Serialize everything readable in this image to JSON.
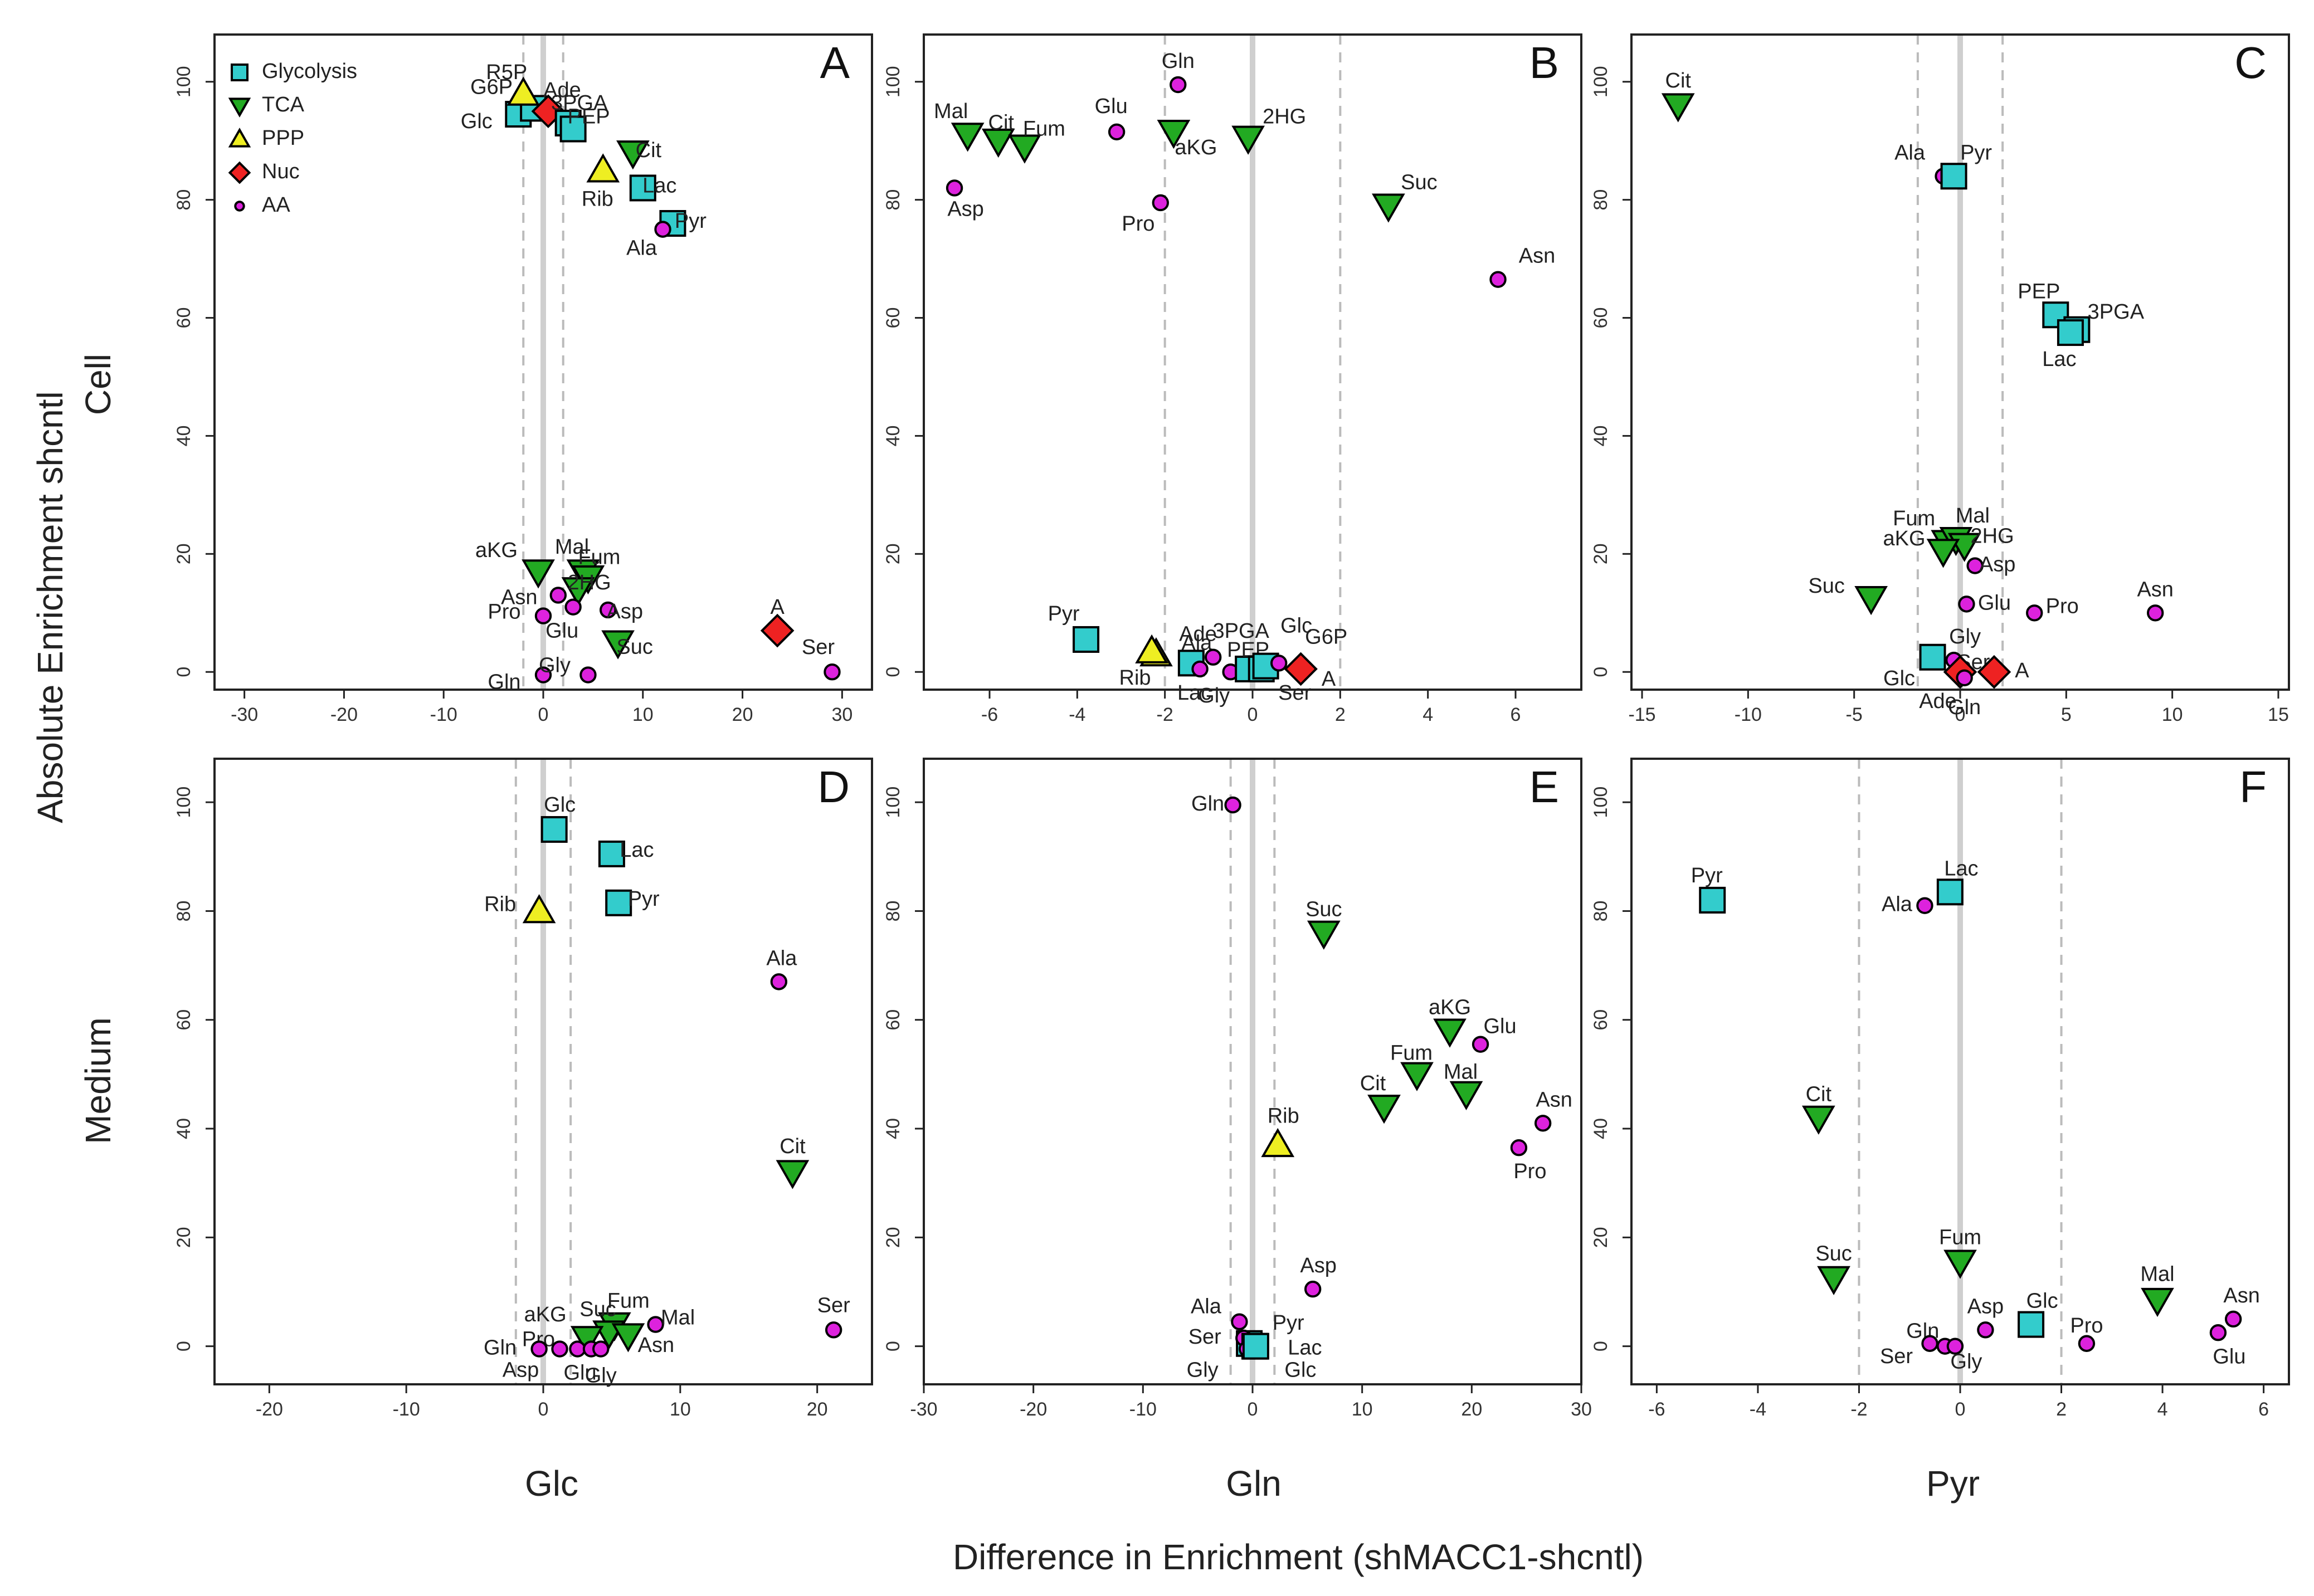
{
  "figure": {
    "ylabel": "Absolute Enrichment shcntl",
    "xlabel": "Difference in Enrichment (shMACC1-shcntl)",
    "row_labels": [
      "Cell",
      "Medium"
    ],
    "col_labels": [
      "Glc",
      "Gln",
      "Pyr"
    ]
  },
  "legend": [
    {
      "group": "Glycolysis",
      "label": "Glycolysis"
    },
    {
      "group": "TCA",
      "label": "TCA"
    },
    {
      "group": "PPP",
      "label": "PPP"
    },
    {
      "group": "Nuc",
      "label": "Nuc"
    },
    {
      "group": "AA",
      "label": "AA"
    }
  ],
  "styles": {
    "Glycolysis": {
      "marker": "square",
      "color": "#33cccc"
    },
    "TCA": {
      "marker": "triangle-down",
      "color": "#22aa22"
    },
    "PPP": {
      "marker": "triangle-up",
      "color": "#eeee22"
    },
    "Nuc": {
      "marker": "diamond",
      "color": "#ee2222"
    },
    "AA": {
      "marker": "circle",
      "color": "#dd22dd"
    }
  },
  "chart_data": [
    {
      "type": "scatter",
      "panel": "A",
      "row": "Cell",
      "col": "Glc",
      "xlim": [
        -33,
        33
      ],
      "ylim": [
        -3,
        108
      ],
      "xticks": [
        -30,
        -20,
        -10,
        0,
        10,
        20,
        30
      ],
      "yticks": [
        0,
        20,
        40,
        60,
        80,
        100
      ],
      "dashed_x": [
        -2,
        2
      ],
      "grid_x": 0,
      "points": [
        {
          "label": "Glc",
          "group": "Glycolysis",
          "x": -2.5,
          "y": 94.5
        },
        {
          "label": "G6P",
          "group": "Glycolysis",
          "x": -1,
          "y": 95.5
        },
        {
          "label": "R5P",
          "group": "PPP",
          "x": -2,
          "y": 98
        },
        {
          "label": "Ade",
          "group": "Nuc",
          "x": 0.5,
          "y": 95
        },
        {
          "label": "3PGA",
          "group": "Glycolysis",
          "x": 2.5,
          "y": 93
        },
        {
          "label": "PEP",
          "group": "Glycolysis",
          "x": 3,
          "y": 92
        },
        {
          "label": "Cit",
          "group": "TCA",
          "x": 9,
          "y": 88
        },
        {
          "label": "Rib",
          "group": "PPP",
          "x": 6,
          "y": 85
        },
        {
          "label": "Lac",
          "group": "Glycolysis",
          "x": 10,
          "y": 82
        },
        {
          "label": "Pyr",
          "group": "Glycolysis",
          "x": 13,
          "y": 76
        },
        {
          "label": "Ala",
          "group": "AA",
          "x": 12,
          "y": 75
        },
        {
          "label": "aKG",
          "group": "TCA",
          "x": -0.5,
          "y": 17
        },
        {
          "label": "Mal",
          "group": "TCA",
          "x": 4,
          "y": 17
        },
        {
          "label": "Fum",
          "group": "TCA",
          "x": 4.5,
          "y": 16
        },
        {
          "label": "2HG",
          "group": "TCA",
          "x": 3.5,
          "y": 14
        },
        {
          "label": "Asn",
          "group": "AA",
          "x": 1.5,
          "y": 13
        },
        {
          "label": "Glu",
          "group": "AA",
          "x": 3,
          "y": 11
        },
        {
          "label": "Asp",
          "group": "AA",
          "x": 6.5,
          "y": 10.5
        },
        {
          "label": "Pro",
          "group": "AA",
          "x": 0,
          "y": 9.5
        },
        {
          "label": "Suc",
          "group": "TCA",
          "x": 7.5,
          "y": 5
        },
        {
          "label": "A",
          "group": "Nuc",
          "x": 23.5,
          "y": 7
        },
        {
          "label": "Gln",
          "group": "AA",
          "x": 0,
          "y": -0.5
        },
        {
          "label": "Gly",
          "group": "AA",
          "x": 4.5,
          "y": -0.5
        },
        {
          "label": "Ser",
          "group": "AA",
          "x": 29,
          "y": 0
        }
      ]
    },
    {
      "type": "scatter",
      "panel": "B",
      "row": "Cell",
      "col": "Gln",
      "xlim": [
        -7.5,
        7.5
      ],
      "ylim": [
        -3,
        108
      ],
      "xticks": [
        -6,
        -4,
        -2,
        0,
        2,
        4,
        6
      ],
      "yticks": [
        0,
        20,
        40,
        60,
        80,
        100
      ],
      "dashed_x": [
        -2,
        2
      ],
      "grid_x": 0,
      "points": [
        {
          "label": "Gln",
          "group": "AA",
          "x": -1.7,
          "y": 99.5
        },
        {
          "label": "Mal",
          "group": "TCA",
          "x": -6.5,
          "y": 91
        },
        {
          "label": "Cit",
          "group": "TCA",
          "x": -5.8,
          "y": 90
        },
        {
          "label": "Fum",
          "group": "TCA",
          "x": -5.2,
          "y": 89
        },
        {
          "label": "Glu",
          "group": "AA",
          "x": -3.1,
          "y": 91.5
        },
        {
          "label": "aKG",
          "group": "TCA",
          "x": -1.8,
          "y": 91.5
        },
        {
          "label": "2HG",
          "group": "TCA",
          "x": -0.1,
          "y": 90.5
        },
        {
          "label": "Asp",
          "group": "AA",
          "x": -6.8,
          "y": 82
        },
        {
          "label": "Pro",
          "group": "AA",
          "x": -2.1,
          "y": 79.5
        },
        {
          "label": "Suc",
          "group": "TCA",
          "x": 3.1,
          "y": 79
        },
        {
          "label": "Asn",
          "group": "AA",
          "x": 5.6,
          "y": 66.5
        },
        {
          "label": "Pyr",
          "group": "Glycolysis",
          "x": -3.8,
          "y": 5.5
        },
        {
          "label": "Ade",
          "group": "PPP",
          "x": -2.2,
          "y": 3
        },
        {
          "label": "Rib",
          "group": "PPP",
          "x": -2.3,
          "y": 3.5
        },
        {
          "label": "Ala",
          "group": "Glycolysis",
          "x": -1.4,
          "y": 1.5
        },
        {
          "label": "3PGA",
          "group": "AA",
          "x": -0.9,
          "y": 2.5
        },
        {
          "label": "Lac",
          "group": "AA",
          "x": -1.2,
          "y": 0.5
        },
        {
          "label": "Gly",
          "group": "AA",
          "x": -0.5,
          "y": 0
        },
        {
          "label": "PEP",
          "group": "Glycolysis",
          "x": -0.1,
          "y": 0.5
        },
        {
          "label": "Ser",
          "group": "Glycolysis",
          "x": 0.2,
          "y": 0.5
        },
        {
          "label": "Glc",
          "group": "Glycolysis",
          "x": 0.3,
          "y": 1
        },
        {
          "label": "G6P",
          "group": "AA",
          "x": 0.6,
          "y": 1.5
        },
        {
          "label": "A",
          "group": "Nuc",
          "x": 1.1,
          "y": 0.5
        }
      ]
    },
    {
      "type": "scatter",
      "panel": "C",
      "row": "Cell",
      "col": "Pyr",
      "xlim": [
        -15.5,
        15.5
      ],
      "ylim": [
        -3,
        108
      ],
      "xticks": [
        -15,
        -10,
        -5,
        0,
        5,
        10,
        15
      ],
      "yticks": [
        0,
        20,
        40,
        60,
        80,
        100
      ],
      "dashed_x": [
        -2,
        2
      ],
      "grid_x": 0,
      "points": [
        {
          "label": "Cit",
          "group": "TCA",
          "x": -13.3,
          "y": 96
        },
        {
          "label": "Ala",
          "group": "AA",
          "x": -0.8,
          "y": 84
        },
        {
          "label": "Pyr",
          "group": "Glycolysis",
          "x": -0.3,
          "y": 84
        },
        {
          "label": "PEP",
          "group": "Glycolysis",
          "x": 4.5,
          "y": 60.5
        },
        {
          "label": "3PGA",
          "group": "Glycolysis",
          "x": 5.5,
          "y": 58
        },
        {
          "label": "Lac",
          "group": "Glycolysis",
          "x": 5.2,
          "y": 57.5
        },
        {
          "label": "Fum",
          "group": "TCA",
          "x": -0.6,
          "y": 22
        },
        {
          "label": "Mal",
          "group": "TCA",
          "x": -0.2,
          "y": 22.5
        },
        {
          "label": "2HG",
          "group": "TCA",
          "x": 0.2,
          "y": 21.5
        },
        {
          "label": "aKG",
          "group": "TCA",
          "x": -0.8,
          "y": 20.5
        },
        {
          "label": "Asp",
          "group": "AA",
          "x": 0.7,
          "y": 18
        },
        {
          "label": "Suc",
          "group": "TCA",
          "x": -4.2,
          "y": 12.5
        },
        {
          "label": "Glu",
          "group": "AA",
          "x": 0.3,
          "y": 11.5
        },
        {
          "label": "Pro",
          "group": "AA",
          "x": 3.5,
          "y": 10
        },
        {
          "label": "Asn",
          "group": "AA",
          "x": 9.2,
          "y": 10
        },
        {
          "label": "Glc",
          "group": "Glycolysis",
          "x": -1.3,
          "y": 2.5
        },
        {
          "label": "Gly",
          "group": "AA",
          "x": -0.3,
          "y": 2
        },
        {
          "label": "Ser",
          "group": "AA",
          "x": 0.1,
          "y": 0.5
        },
        {
          "label": "Ade",
          "group": "Nuc",
          "x": 0,
          "y": 0
        },
        {
          "label": "Gln",
          "group": "AA",
          "x": 0.2,
          "y": -1
        },
        {
          "label": "A",
          "group": "Nuc",
          "x": 1.6,
          "y": 0
        }
      ]
    },
    {
      "type": "scatter",
      "panel": "D",
      "row": "Medium",
      "col": "Glc",
      "xlim": [
        -24,
        24
      ],
      "ylim": [
        -7,
        108
      ],
      "xticks": [
        -20,
        -10,
        0,
        10,
        20
      ],
      "yticks": [
        0,
        20,
        40,
        60,
        80,
        100
      ],
      "dashed_x": [
        -2,
        2
      ],
      "grid_x": 0,
      "points": [
        {
          "label": "Glc",
          "group": "Glycolysis",
          "x": 0.8,
          "y": 95
        },
        {
          "label": "Lac",
          "group": "Glycolysis",
          "x": 5,
          "y": 90.5
        },
        {
          "label": "Pyr",
          "group": "Glycolysis",
          "x": 5.5,
          "y": 81.5
        },
        {
          "label": "Rib",
          "group": "PPP",
          "x": -0.3,
          "y": 80
        },
        {
          "label": "Ala",
          "group": "AA",
          "x": 17.2,
          "y": 67
        },
        {
          "label": "Cit",
          "group": "TCA",
          "x": 18.2,
          "y": 32
        },
        {
          "label": "Ser",
          "group": "AA",
          "x": 21.2,
          "y": 3
        },
        {
          "label": "Fum",
          "group": "TCA",
          "x": 5.2,
          "y": 4
        },
        {
          "label": "Suc",
          "group": "TCA",
          "x": 4.8,
          "y": 2.5
        },
        {
          "label": "Mal",
          "group": "AA",
          "x": 8.2,
          "y": 4
        },
        {
          "label": "aKG",
          "group": "TCA",
          "x": 3.2,
          "y": 1.5
        },
        {
          "label": "Asn",
          "group": "TCA",
          "x": 6.2,
          "y": 2
        },
        {
          "label": "Pro",
          "group": "AA",
          "x": 2.5,
          "y": -0.5
        },
        {
          "label": "Gln",
          "group": "AA",
          "x": -0.3,
          "y": -0.5
        },
        {
          "label": "Asp",
          "group": "AA",
          "x": 1.2,
          "y": -0.5
        },
        {
          "label": "Glu",
          "group": "AA",
          "x": 3.5,
          "y": -0.5
        },
        {
          "label": "Gly",
          "group": "AA",
          "x": 4.2,
          "y": -0.5
        }
      ]
    },
    {
      "type": "scatter",
      "panel": "E",
      "row": "Medium",
      "col": "Gln",
      "xlim": [
        -30,
        30
      ],
      "ylim": [
        -7,
        108
      ],
      "xticks": [
        -30,
        -20,
        -10,
        0,
        10,
        20,
        30
      ],
      "yticks": [
        0,
        20,
        40,
        60,
        80,
        100
      ],
      "dashed_x": [
        -2,
        2
      ],
      "grid_x": 0,
      "points": [
        {
          "label": "Gln",
          "group": "AA",
          "x": -1.8,
          "y": 99.5
        },
        {
          "label": "Suc",
          "group": "TCA",
          "x": 6.5,
          "y": 76
        },
        {
          "label": "aKG",
          "group": "TCA",
          "x": 18,
          "y": 58
        },
        {
          "label": "Glu",
          "group": "AA",
          "x": 20.8,
          "y": 55.5
        },
        {
          "label": "Fum",
          "group": "TCA",
          "x": 15,
          "y": 50
        },
        {
          "label": "Mal",
          "group": "TCA",
          "x": 19.5,
          "y": 46.5
        },
        {
          "label": "Cit",
          "group": "TCA",
          "x": 12,
          "y": 44
        },
        {
          "label": "Asn",
          "group": "AA",
          "x": 26.5,
          "y": 41
        },
        {
          "label": "Pro",
          "group": "AA",
          "x": 24.3,
          "y": 36.5
        },
        {
          "label": "Rib",
          "group": "PPP",
          "x": 2.3,
          "y": 37
        },
        {
          "label": "Asp",
          "group": "AA",
          "x": 5.5,
          "y": 10.5
        },
        {
          "label": "Ala",
          "group": "AA",
          "x": -1.2,
          "y": 4.5
        },
        {
          "label": "Pyr",
          "group": "Glycolysis",
          "x": -0.3,
          "y": 0.5
        },
        {
          "label": "Ser",
          "group": "AA",
          "x": -0.8,
          "y": 1.5
        },
        {
          "label": "Lac",
          "group": "Glycolysis",
          "x": 0.2,
          "y": 0
        },
        {
          "label": "Gly",
          "group": "AA",
          "x": -0.5,
          "y": -0.5
        },
        {
          "label": "Glc",
          "group": "Glycolysis",
          "x": 0.3,
          "y": 0
        }
      ]
    },
    {
      "type": "scatter",
      "panel": "F",
      "row": "Medium",
      "col": "Pyr",
      "xlim": [
        -6.5,
        6.5
      ],
      "ylim": [
        -7,
        108
      ],
      "xticks": [
        -6,
        -4,
        -2,
        0,
        2,
        4,
        6
      ],
      "yticks": [
        0,
        20,
        40,
        60,
        80,
        100
      ],
      "dashed_x": [
        -2,
        2
      ],
      "grid_x": 0,
      "points": [
        {
          "label": "Pyr",
          "group": "Glycolysis",
          "x": -4.9,
          "y": 82
        },
        {
          "label": "Ala",
          "group": "AA",
          "x": -0.7,
          "y": 81
        },
        {
          "label": "Lac",
          "group": "Glycolysis",
          "x": -0.2,
          "y": 83.5
        },
        {
          "label": "Cit",
          "group": "TCA",
          "x": -2.8,
          "y": 42
        },
        {
          "label": "Suc",
          "group": "TCA",
          "x": -2.5,
          "y": 12.5
        },
        {
          "label": "Fum",
          "group": "TCA",
          "x": 0,
          "y": 15.5
        },
        {
          "label": "Mal",
          "group": "TCA",
          "x": 3.9,
          "y": 8.5
        },
        {
          "label": "Asn",
          "group": "AA",
          "x": 5.4,
          "y": 5
        },
        {
          "label": "Glc",
          "group": "Glycolysis",
          "x": 1.4,
          "y": 4
        },
        {
          "label": "Asp",
          "group": "AA",
          "x": 0.5,
          "y": 3
        },
        {
          "label": "Pro",
          "group": "AA",
          "x": 2.5,
          "y": 0.5
        },
        {
          "label": "Glu",
          "group": "AA",
          "x": 5.1,
          "y": 2.5
        },
        {
          "label": "Gln",
          "group": "AA",
          "x": -0.3,
          "y": 0
        },
        {
          "label": "Ser",
          "group": "AA",
          "x": -0.6,
          "y": 0.5
        },
        {
          "label": "Gly",
          "group": "AA",
          "x": -0.1,
          "y": 0
        }
      ]
    }
  ]
}
